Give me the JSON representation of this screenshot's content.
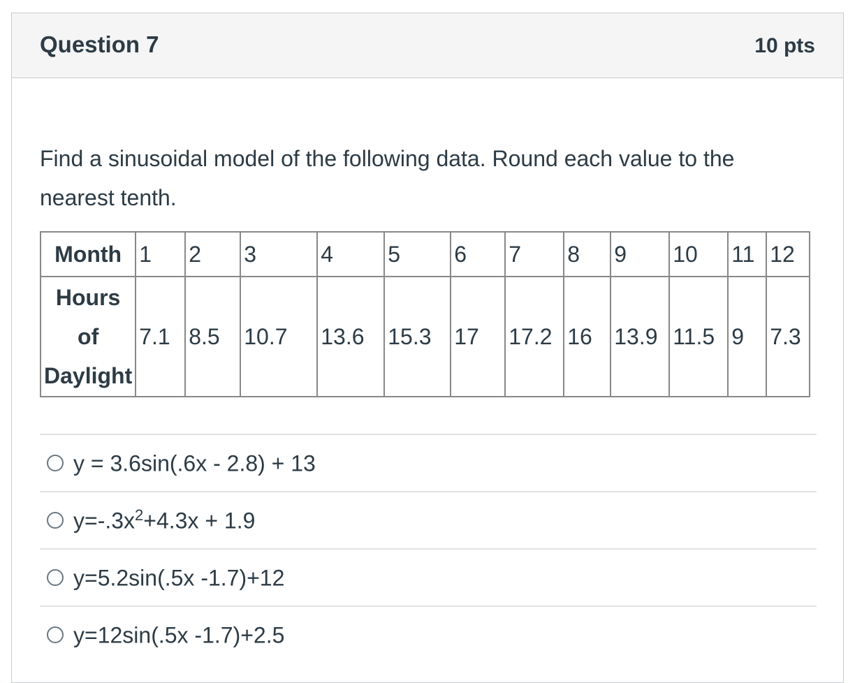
{
  "question": {
    "title": "Question 7",
    "points": "10 pts",
    "text": "Find a sinusoidal model of the following data. Round each value to the nearest tenth."
  },
  "table": {
    "row1_label": "Month",
    "row2_label": [
      "Hours",
      "of",
      "Daylight"
    ],
    "months": [
      "1",
      "2",
      "3",
      "4",
      "5",
      "6",
      "7",
      "8",
      "9",
      "10",
      "11",
      "12"
    ],
    "hours": [
      "7.1",
      "8.5",
      "10.7",
      "13.6",
      "15.3",
      "17",
      "17.2",
      "16",
      "13.9",
      "11.5",
      "9",
      "7.3"
    ]
  },
  "options": [
    {
      "pre": "y = 3.6sin(.6x - 2.8) + 13",
      "sup": "",
      "post": ""
    },
    {
      "pre": "y=-.3x",
      "sup": "2",
      "post": "+4.3x + 1.9"
    },
    {
      "pre": "y=5.2sin(.5x -1.7)+12",
      "sup": "",
      "post": ""
    },
    {
      "pre": "y=12sin(.5x -1.7)+2.5",
      "sup": "",
      "post": ""
    }
  ]
}
